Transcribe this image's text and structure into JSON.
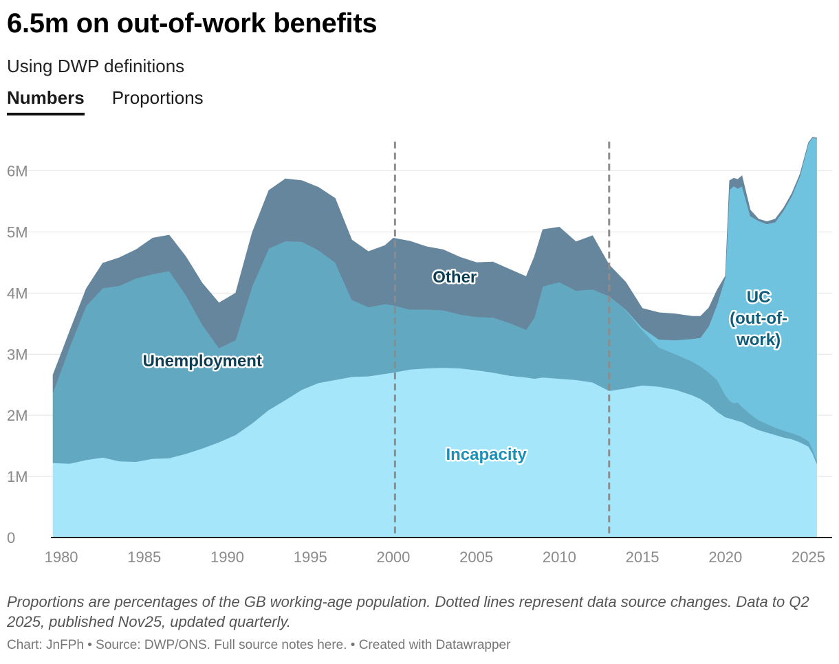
{
  "header": {
    "title": "6.5m on out-of-work benefits",
    "subtitle": "Using DWP definitions",
    "tabs": [
      {
        "label": "Numbers",
        "active": true
      },
      {
        "label": "Proportions",
        "active": false
      }
    ]
  },
  "footer": {
    "notes": "Proportions are percentages of the GB working-age population. Dotted lines represent data source changes. Data to Q2 2025, published Nov25, updated quarterly.",
    "credit": "Chart: JnFPh • Source: DWP/ONS. Full source notes here. • Created with Datawrapper"
  },
  "colors": {
    "incapacity": "#a6e6fb",
    "unemployment": "#62a8c0",
    "other": "#66869d",
    "uc": "#70c3df",
    "uc_label": "#0d5d7c",
    "incapacity_label": "#1b8fb8",
    "dark_label": "#0d3d52"
  },
  "chart_data": {
    "type": "area",
    "stacked": true,
    "title": "6.5m on out-of-work benefits",
    "ylabel": "",
    "xlabel": "",
    "xlim": [
      1979.5,
      2025.6
    ],
    "ylim": [
      0,
      6500000
    ],
    "y_ticks": [
      0,
      1000000,
      2000000,
      3000000,
      4000000,
      5000000,
      6000000
    ],
    "y_tick_labels": [
      "0",
      "1M",
      "2M",
      "3M",
      "4M",
      "5M",
      "6M"
    ],
    "x_ticks": [
      1980,
      1985,
      1990,
      1995,
      2000,
      2005,
      2010,
      2015,
      2020,
      2025
    ],
    "x_tick_labels": [
      "1980",
      "1985",
      "1990",
      "1995",
      "2000",
      "2005",
      "2010",
      "2015",
      "2020",
      "2025"
    ],
    "grid": true,
    "source_change_years": [
      2000.1,
      2013.0
    ],
    "series_labels": [
      {
        "series": "Unemployment",
        "text": "Unemployment",
        "x": 1988.5,
        "y": 2800000
      },
      {
        "series": "Other",
        "text": "Other",
        "x": 2003.7,
        "y": 4170000
      },
      {
        "series": "Incapacity",
        "text": "Incapacity",
        "x": 2005.6,
        "y": 1270000
      },
      {
        "series": "UC (out-of-work)",
        "lines": [
          "UC",
          "(out-of-",
          "work)"
        ],
        "x": 2022.0,
        "y": 3500000
      }
    ],
    "x": [
      1979.5,
      1980.5,
      1981.5,
      1982.5,
      1983.5,
      1984.5,
      1985.5,
      1986.5,
      1987.5,
      1988.5,
      1989.5,
      1990.5,
      1991.5,
      1992.5,
      1993.5,
      1994.5,
      1995.5,
      1996.5,
      1997.5,
      1998.5,
      1999.5,
      2000.0,
      2001.0,
      2002.0,
      2003.0,
      2004.0,
      2005.0,
      2006.0,
      2007.0,
      2008.0,
      2008.5,
      2009.0,
      2010.0,
      2011.0,
      2012.0,
      2013.0,
      2014.0,
      2015.0,
      2016.0,
      2017.0,
      2018.0,
      2018.5,
      2019.0,
      2019.5,
      2020.0,
      2020.25,
      2020.5,
      2020.75,
      2021.0,
      2021.5,
      2022.0,
      2022.5,
      2023.0,
      2023.5,
      2024.0,
      2024.5,
      2025.0,
      2025.25,
      2025.5
    ],
    "series": [
      {
        "name": "Incapacity",
        "values": [
          1220000,
          1210000,
          1270000,
          1310000,
          1250000,
          1240000,
          1290000,
          1300000,
          1370000,
          1460000,
          1560000,
          1680000,
          1870000,
          2090000,
          2250000,
          2420000,
          2530000,
          2580000,
          2630000,
          2640000,
          2680000,
          2700000,
          2750000,
          2770000,
          2780000,
          2770000,
          2740000,
          2700000,
          2650000,
          2620000,
          2600000,
          2620000,
          2600000,
          2580000,
          2540000,
          2400000,
          2440000,
          2490000,
          2470000,
          2420000,
          2330000,
          2270000,
          2180000,
          2060000,
          1970000,
          1950000,
          1930000,
          1910000,
          1890000,
          1820000,
          1760000,
          1720000,
          1680000,
          1640000,
          1610000,
          1560000,
          1490000,
          1380000,
          1210000
        ]
      },
      {
        "name": "Unemployment",
        "values": [
          1150000,
          1900000,
          2520000,
          2770000,
          2870000,
          3000000,
          3020000,
          3060000,
          2600000,
          2020000,
          1540000,
          1550000,
          2240000,
          2640000,
          2600000,
          2420000,
          2170000,
          1920000,
          1260000,
          1130000,
          1140000,
          1100000,
          980000,
          960000,
          940000,
          880000,
          870000,
          900000,
          860000,
          780000,
          1000000,
          1490000,
          1580000,
          1460000,
          1520000,
          1550000,
          1280000,
          900000,
          640000,
          580000,
          550000,
          530000,
          520000,
          520000,
          360000,
          290000,
          270000,
          300000,
          250000,
          200000,
          160000,
          140000,
          120000,
          110000,
          100000,
          100000,
          90000,
          70000,
          50000
        ]
      },
      {
        "name": "UC (out-of-work)",
        "values": [
          0,
          0,
          0,
          0,
          0,
          0,
          0,
          0,
          0,
          0,
          0,
          0,
          0,
          0,
          0,
          0,
          0,
          0,
          0,
          0,
          0,
          0,
          0,
          0,
          0,
          0,
          0,
          0,
          0,
          0,
          0,
          0,
          0,
          0,
          0,
          0,
          10000,
          40000,
          130000,
          230000,
          370000,
          470000,
          760000,
          1230000,
          1930000,
          3450000,
          3550000,
          3500000,
          3610000,
          3240000,
          3260000,
          3270000,
          3360000,
          3600000,
          3880000,
          4260000,
          4870000,
          5090000,
          5270000
        ]
      },
      {
        "name": "Other",
        "values": [
          290000,
          260000,
          280000,
          410000,
          460000,
          470000,
          590000,
          590000,
          630000,
          680000,
          740000,
          770000,
          880000,
          950000,
          1020000,
          1000000,
          1030000,
          1050000,
          980000,
          910000,
          960000,
          1100000,
          1120000,
          1030000,
          990000,
          940000,
          890000,
          910000,
          880000,
          870000,
          1000000,
          930000,
          900000,
          800000,
          880000,
          510000,
          450000,
          320000,
          440000,
          430000,
          370000,
          350000,
          300000,
          240000,
          20000,
          150000,
          130000,
          150000,
          170000,
          100000,
          30000,
          40000,
          50000,
          40000,
          40000,
          30000,
          10000,
          10000,
          10000
        ]
      }
    ]
  }
}
